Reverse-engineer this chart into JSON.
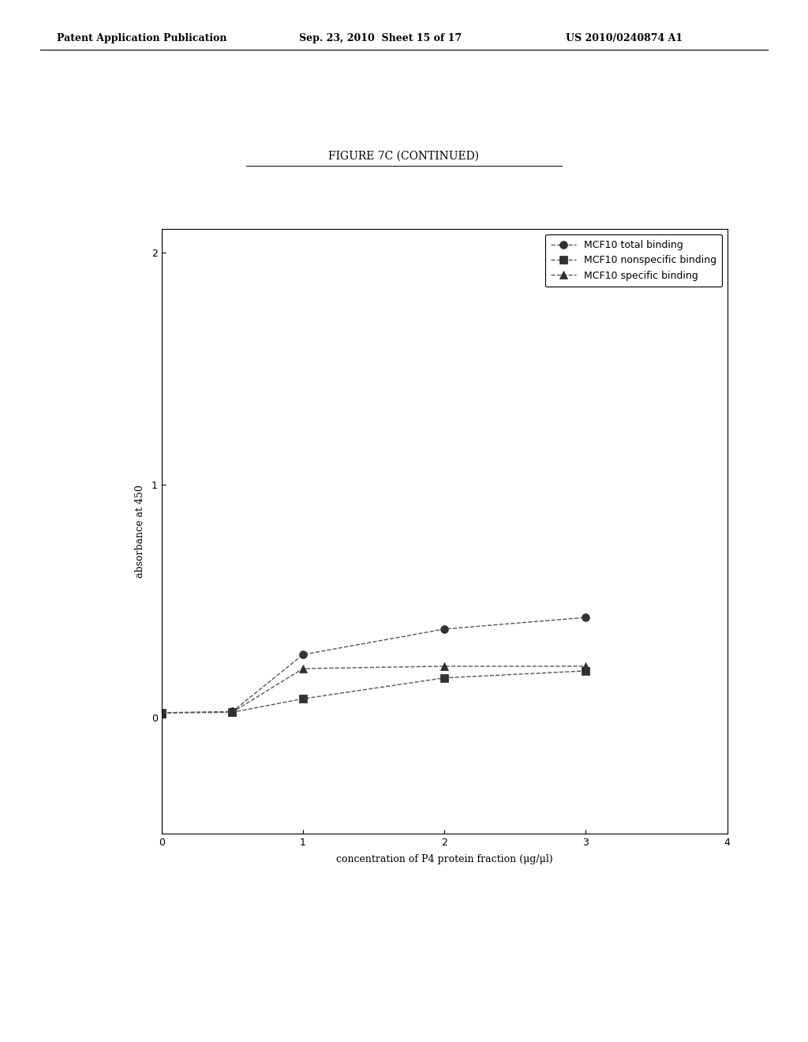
{
  "title": "FIGURE 7C (CONTINUED)",
  "xlabel": "concentration of P4 protein fraction (μg/μl)",
  "ylabel": "absorbance at 450",
  "xlim": [
    0,
    4
  ],
  "ylim": [
    -0.5,
    2.1
  ],
  "xticks": [
    0,
    1,
    2,
    3,
    4
  ],
  "yticks": [
    0,
    1,
    2
  ],
  "series": [
    {
      "label": "MCF10 total binding",
      "x": [
        0,
        0.5,
        1.0,
        2.0,
        3.0
      ],
      "y": [
        0.02,
        0.025,
        0.27,
        0.38,
        0.43
      ],
      "marker": "o",
      "color": "#555555",
      "linestyle": "--"
    },
    {
      "label": "MCF10 nonspecific binding",
      "x": [
        0,
        0.5,
        1.0,
        2.0,
        3.0
      ],
      "y": [
        0.02,
        0.022,
        0.08,
        0.17,
        0.2
      ],
      "marker": "s",
      "color": "#555555",
      "linestyle": "--"
    },
    {
      "label": "MCF10 specific binding",
      "x": [
        0,
        0.5,
        1.0,
        2.0,
        3.0
      ],
      "y": [
        0.02,
        0.022,
        0.21,
        0.22,
        0.22
      ],
      "marker": "^",
      "color": "#555555",
      "linestyle": "--"
    }
  ],
  "header_left": "Patent Application Publication",
  "header_center": "Sep. 23, 2010  Sheet 15 of 17",
  "header_right": "US 2010/0240874 A1",
  "bg_color": "#ffffff",
  "plot_bg_color": "#ffffff",
  "title_fontsize": 10,
  "axis_fontsize": 9,
  "tick_fontsize": 9,
  "legend_fontsize": 9,
  "header_fontsize": 9
}
